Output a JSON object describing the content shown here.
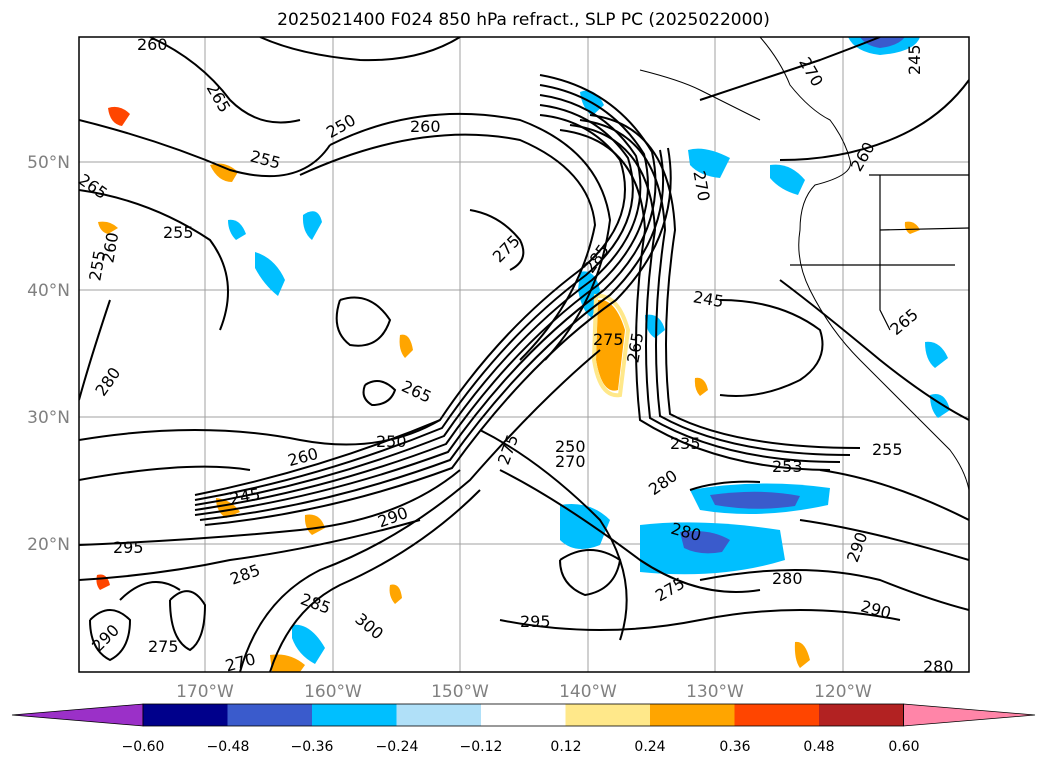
{
  "title": "2025021400 F024 850 hPa refract., SLP PC (2025022000)",
  "axes": {
    "lat_ticks": [
      "50°N",
      "40°N",
      "30°N",
      "20°N"
    ],
    "lon_ticks": [
      "170°W",
      "160°W",
      "150°W",
      "140°W",
      "130°W",
      "120°W"
    ]
  },
  "contour_labels": [
    "260",
    "265",
    "250",
    "260",
    "255",
    "265",
    "255",
    "255",
    "260",
    "275",
    "285",
    "245",
    "280",
    "275",
    "265",
    "250",
    "260",
    "245",
    "235",
    "255",
    "253",
    "250",
    "280",
    "290",
    "275",
    "270",
    "295",
    "285",
    "290",
    "285",
    "275",
    "270",
    "300",
    "280",
    "275",
    "280",
    "295",
    "290",
    "265",
    "260",
    "270",
    "265",
    "270",
    "245",
    "290",
    "280"
  ],
  "colorbar": {
    "ticks": [
      "−0.60",
      "−0.48",
      "−0.36",
      "−0.24",
      "−0.12",
      "0.12",
      "0.24",
      "0.36",
      "0.48",
      "0.60"
    ],
    "colors": [
      "#9b30c8",
      "#00008b",
      "#3a5bcc",
      "#00bfff",
      "#b0e0f8",
      "#ffffff",
      "#ffe88a",
      "#ffa500",
      "#ff4500",
      "#b22222",
      "#ff85a8"
    ]
  }
}
